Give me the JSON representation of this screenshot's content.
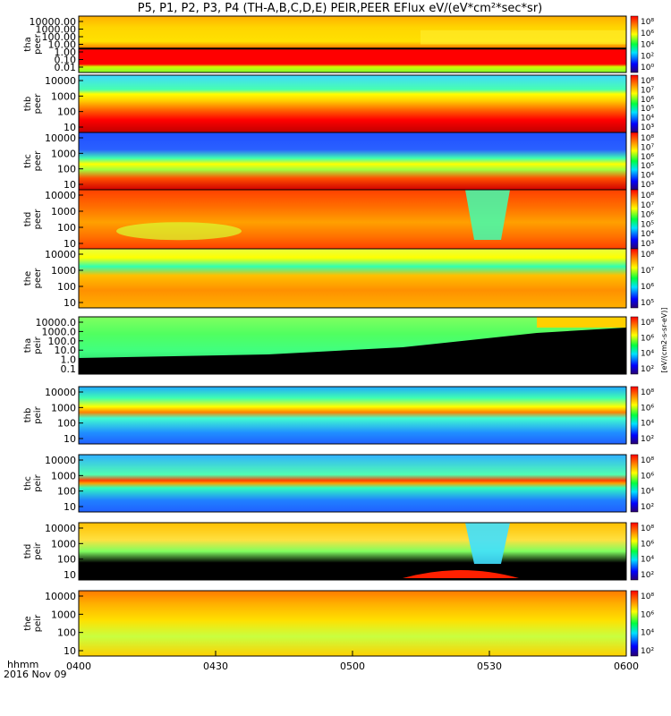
{
  "chart_data": {
    "type": "heatmap",
    "title": "P5, P1, P2, P3, P4 (TH-A,B,C,D,E) PEIR,PEER EFlux eV/(eV*cm²*sec*sr)",
    "x_ticks": [
      "0400",
      "0430",
      "0500",
      "0530",
      "0600"
    ],
    "x_label_left": [
      "hhmm",
      "2016 Nov 09"
    ],
    "colorbar_label": "[eV/(cm2-s-sr-eV)]",
    "panels": [
      {
        "id": "tha-peer",
        "ylabel": [
          "tha",
          "peer"
        ],
        "yticks": [
          "10000.00",
          "1000.00",
          "100.00",
          "10.00",
          "1.00",
          "0.10",
          "0.01"
        ],
        "cb_ticks": [
          "10⁸",
          "10⁶",
          "10⁴",
          "10²",
          "10⁰"
        ]
      },
      {
        "id": "thb-peer",
        "ylabel": [
          "thb",
          "peer"
        ],
        "yticks": [
          "10000",
          "1000",
          "100",
          "10"
        ],
        "cb_ticks": [
          "10⁸",
          "10⁷",
          "10⁶",
          "10⁵",
          "10⁴",
          "10³"
        ]
      },
      {
        "id": "thc-peer",
        "ylabel": [
          "thc",
          "peer"
        ],
        "yticks": [
          "10000",
          "1000",
          "100",
          "10"
        ],
        "cb_ticks": [
          "10⁸",
          "10⁷",
          "10⁶",
          "10⁵",
          "10⁴",
          "10³"
        ]
      },
      {
        "id": "thd-peer",
        "ylabel": [
          "thd",
          "peer"
        ],
        "yticks": [
          "10000",
          "1000",
          "100",
          "10"
        ],
        "cb_ticks": [
          "10⁸",
          "10⁷",
          "10⁶",
          "10⁵",
          "10⁴",
          "10³"
        ]
      },
      {
        "id": "the-peer",
        "ylabel": [
          "the",
          "peer"
        ],
        "yticks": [
          "10000",
          "1000",
          "100",
          "10"
        ],
        "cb_ticks": [
          "10⁸",
          "10⁷",
          "10⁶",
          "10⁵"
        ]
      },
      {
        "id": "tha-peir",
        "ylabel": [
          "tha",
          "peir"
        ],
        "yticks": [
          "10000.0",
          "1000.0",
          "100.0",
          "10.0",
          "1.0",
          "0.1"
        ],
        "cb_ticks": [
          "10⁸",
          "10⁶",
          "10⁴",
          "10²"
        ]
      },
      {
        "id": "thb-peir",
        "ylabel": [
          "thb",
          "peir"
        ],
        "yticks": [
          "10000",
          "1000",
          "100",
          "10"
        ],
        "cb_ticks": [
          "10⁸",
          "10⁶",
          "10⁴",
          "10²"
        ]
      },
      {
        "id": "thc-peir",
        "ylabel": [
          "thc",
          "peir"
        ],
        "yticks": [
          "10000",
          "1000",
          "100",
          "10"
        ],
        "cb_ticks": [
          "10⁸",
          "10⁶",
          "10⁴",
          "10²"
        ]
      },
      {
        "id": "thd-peir",
        "ylabel": [
          "thd",
          "peir"
        ],
        "yticks": [
          "10000",
          "1000",
          "100",
          "10"
        ],
        "cb_ticks": [
          "10⁸",
          "10⁶",
          "10⁴",
          "10²"
        ]
      },
      {
        "id": "the-peir",
        "ylabel": [
          "the",
          "peir"
        ],
        "yticks": [
          "10000",
          "1000",
          "100",
          "10"
        ],
        "cb_ticks": [
          "10⁸",
          "10⁶",
          "10⁴",
          "10²"
        ]
      }
    ]
  }
}
